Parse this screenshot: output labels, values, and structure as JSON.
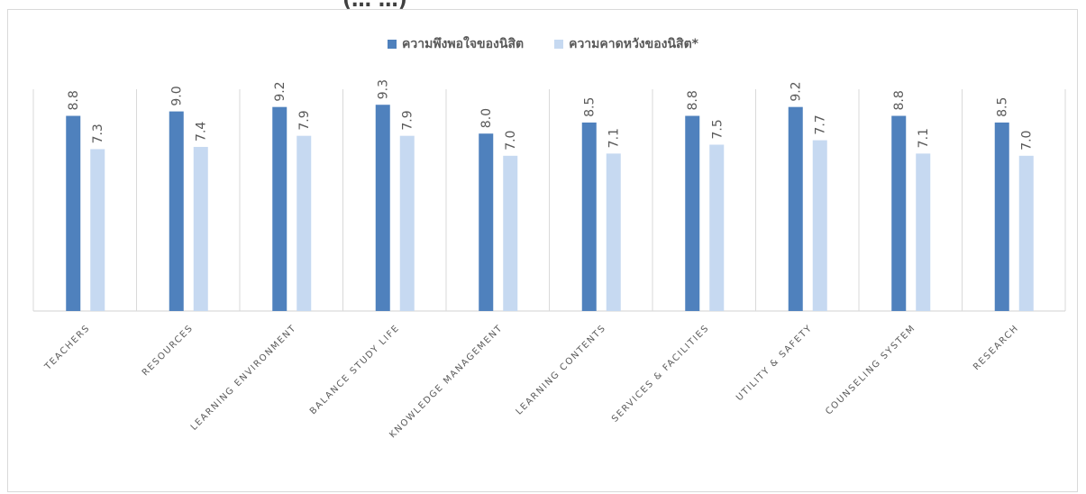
{
  "title_fragment": "(…  …)",
  "colors": {
    "satisfaction": "#4f81bd",
    "expectation": "#c6d9f1",
    "grid": "#d9d9d9",
    "text": "#595959"
  },
  "chart_data": {
    "type": "bar",
    "categories": [
      "TEACHERS",
      "RESOURCES",
      "LEARNING ENVIRONMENT",
      "BALANCE STUDY LIFE",
      "KNOWLEDGE  MANAGEMENT",
      "LEARNING CONTENTS",
      "SERVICES & FACILITIES",
      "UTILITY & SAFETY",
      "COUNSELING SYSTEM",
      "RESEARCH"
    ],
    "series": [
      {
        "name": "ความพึงพอใจของนิสิต",
        "values": [
          8.8,
          9.0,
          9.2,
          9.3,
          8.0,
          8.5,
          8.8,
          9.2,
          8.8,
          8.5
        ]
      },
      {
        "name": "ความคาดหวังของนิสิต*",
        "values": [
          7.3,
          7.4,
          7.9,
          7.9,
          7.0,
          7.1,
          7.5,
          7.7,
          7.1,
          7.0
        ]
      }
    ],
    "ylim": [
      0,
      10
    ],
    "legend_position": "top-center",
    "grid": "vertical category separators"
  }
}
